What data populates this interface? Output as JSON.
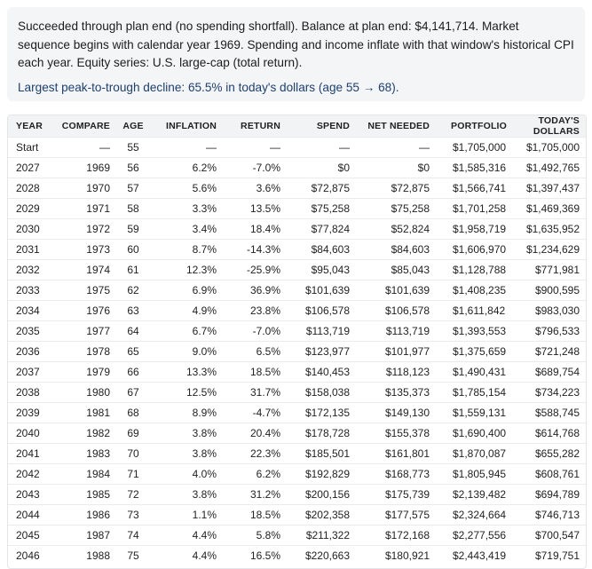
{
  "summary": {
    "text": "Succeeded through plan end (no spending shortfall). Balance at plan end: $4,141,714. Market sequence begins with calendar year 1969. Spending and income inflate with that window's historical CPI each year. Equity series: U.S. large-cap (total return).",
    "decline": "Largest peak-to-trough decline: 65.5% in today's dollars (age 55 → 68)."
  },
  "table": {
    "headers": {
      "year": "YEAR",
      "compare": "COMPARE",
      "age": "AGE",
      "inflation": "INFLATION",
      "return": "RETURN",
      "spend": "SPEND",
      "net_needed": "NET NEEDED",
      "portfolio": "PORTFOLIO",
      "todays_dollars": "TODAY'S DOLLARS"
    },
    "rows": [
      {
        "year": "Start",
        "compare": "—",
        "age": "55",
        "inflation": "—",
        "return": "—",
        "spend": "—",
        "net_needed": "—",
        "portfolio": "$1,705,000",
        "todays_dollars": "$1,705,000"
      },
      {
        "year": "2027",
        "compare": "1969",
        "age": "56",
        "inflation": "6.2%",
        "return": "-7.0%",
        "spend": "$0",
        "net_needed": "$0",
        "portfolio": "$1,585,316",
        "todays_dollars": "$1,492,765"
      },
      {
        "year": "2028",
        "compare": "1970",
        "age": "57",
        "inflation": "5.6%",
        "return": "3.6%",
        "spend": "$72,875",
        "net_needed": "$72,875",
        "portfolio": "$1,566,741",
        "todays_dollars": "$1,397,437"
      },
      {
        "year": "2029",
        "compare": "1971",
        "age": "58",
        "inflation": "3.3%",
        "return": "13.5%",
        "spend": "$75,258",
        "net_needed": "$75,258",
        "portfolio": "$1,701,258",
        "todays_dollars": "$1,469,369"
      },
      {
        "year": "2030",
        "compare": "1972",
        "age": "59",
        "inflation": "3.4%",
        "return": "18.4%",
        "spend": "$77,824",
        "net_needed": "$52,824",
        "portfolio": "$1,958,719",
        "todays_dollars": "$1,635,952"
      },
      {
        "year": "2031",
        "compare": "1973",
        "age": "60",
        "inflation": "8.7%",
        "return": "-14.3%",
        "spend": "$84,603",
        "net_needed": "$84,603",
        "portfolio": "$1,606,970",
        "todays_dollars": "$1,234,629"
      },
      {
        "year": "2032",
        "compare": "1974",
        "age": "61",
        "inflation": "12.3%",
        "return": "-25.9%",
        "spend": "$95,043",
        "net_needed": "$85,043",
        "portfolio": "$1,128,788",
        "todays_dollars": "$771,981"
      },
      {
        "year": "2033",
        "compare": "1975",
        "age": "62",
        "inflation": "6.9%",
        "return": "36.9%",
        "spend": "$101,639",
        "net_needed": "$101,639",
        "portfolio": "$1,408,235",
        "todays_dollars": "$900,595"
      },
      {
        "year": "2034",
        "compare": "1976",
        "age": "63",
        "inflation": "4.9%",
        "return": "23.8%",
        "spend": "$106,578",
        "net_needed": "$106,578",
        "portfolio": "$1,611,842",
        "todays_dollars": "$983,030"
      },
      {
        "year": "2035",
        "compare": "1977",
        "age": "64",
        "inflation": "6.7%",
        "return": "-7.0%",
        "spend": "$113,719",
        "net_needed": "$113,719",
        "portfolio": "$1,393,553",
        "todays_dollars": "$796,533"
      },
      {
        "year": "2036",
        "compare": "1978",
        "age": "65",
        "inflation": "9.0%",
        "return": "6.5%",
        "spend": "$123,977",
        "net_needed": "$101,977",
        "portfolio": "$1,375,659",
        "todays_dollars": "$721,248"
      },
      {
        "year": "2037",
        "compare": "1979",
        "age": "66",
        "inflation": "13.3%",
        "return": "18.5%",
        "spend": "$140,453",
        "net_needed": "$118,123",
        "portfolio": "$1,490,431",
        "todays_dollars": "$689,754"
      },
      {
        "year": "2038",
        "compare": "1980",
        "age": "67",
        "inflation": "12.5%",
        "return": "31.7%",
        "spend": "$158,038",
        "net_needed": "$135,373",
        "portfolio": "$1,785,154",
        "todays_dollars": "$734,223"
      },
      {
        "year": "2039",
        "compare": "1981",
        "age": "68",
        "inflation": "8.9%",
        "return": "-4.7%",
        "spend": "$172,135",
        "net_needed": "$149,130",
        "portfolio": "$1,559,131",
        "todays_dollars": "$588,745"
      },
      {
        "year": "2040",
        "compare": "1982",
        "age": "69",
        "inflation": "3.8%",
        "return": "20.4%",
        "spend": "$178,728",
        "net_needed": "$155,378",
        "portfolio": "$1,690,400",
        "todays_dollars": "$614,768"
      },
      {
        "year": "2041",
        "compare": "1983",
        "age": "70",
        "inflation": "3.8%",
        "return": "22.3%",
        "spend": "$185,501",
        "net_needed": "$161,801",
        "portfolio": "$1,870,087",
        "todays_dollars": "$655,282"
      },
      {
        "year": "2042",
        "compare": "1984",
        "age": "71",
        "inflation": "4.0%",
        "return": "6.2%",
        "spend": "$192,829",
        "net_needed": "$168,773",
        "portfolio": "$1,805,945",
        "todays_dollars": "$608,761"
      },
      {
        "year": "2043",
        "compare": "1985",
        "age": "72",
        "inflation": "3.8%",
        "return": "31.2%",
        "spend": "$200,156",
        "net_needed": "$175,739",
        "portfolio": "$2,139,482",
        "todays_dollars": "$694,789"
      },
      {
        "year": "2044",
        "compare": "1986",
        "age": "73",
        "inflation": "1.1%",
        "return": "18.5%",
        "spend": "$202,358",
        "net_needed": "$177,575",
        "portfolio": "$2,324,664",
        "todays_dollars": "$746,713"
      },
      {
        "year": "2045",
        "compare": "1987",
        "age": "74",
        "inflation": "4.4%",
        "return": "5.8%",
        "spend": "$211,322",
        "net_needed": "$172,168",
        "portfolio": "$2,277,556",
        "todays_dollars": "$700,547"
      },
      {
        "year": "2046",
        "compare": "1988",
        "age": "75",
        "inflation": "4.4%",
        "return": "16.5%",
        "spend": "$220,663",
        "net_needed": "$180,921",
        "portfolio": "$2,443,419",
        "todays_dollars": "$719,751"
      }
    ]
  }
}
